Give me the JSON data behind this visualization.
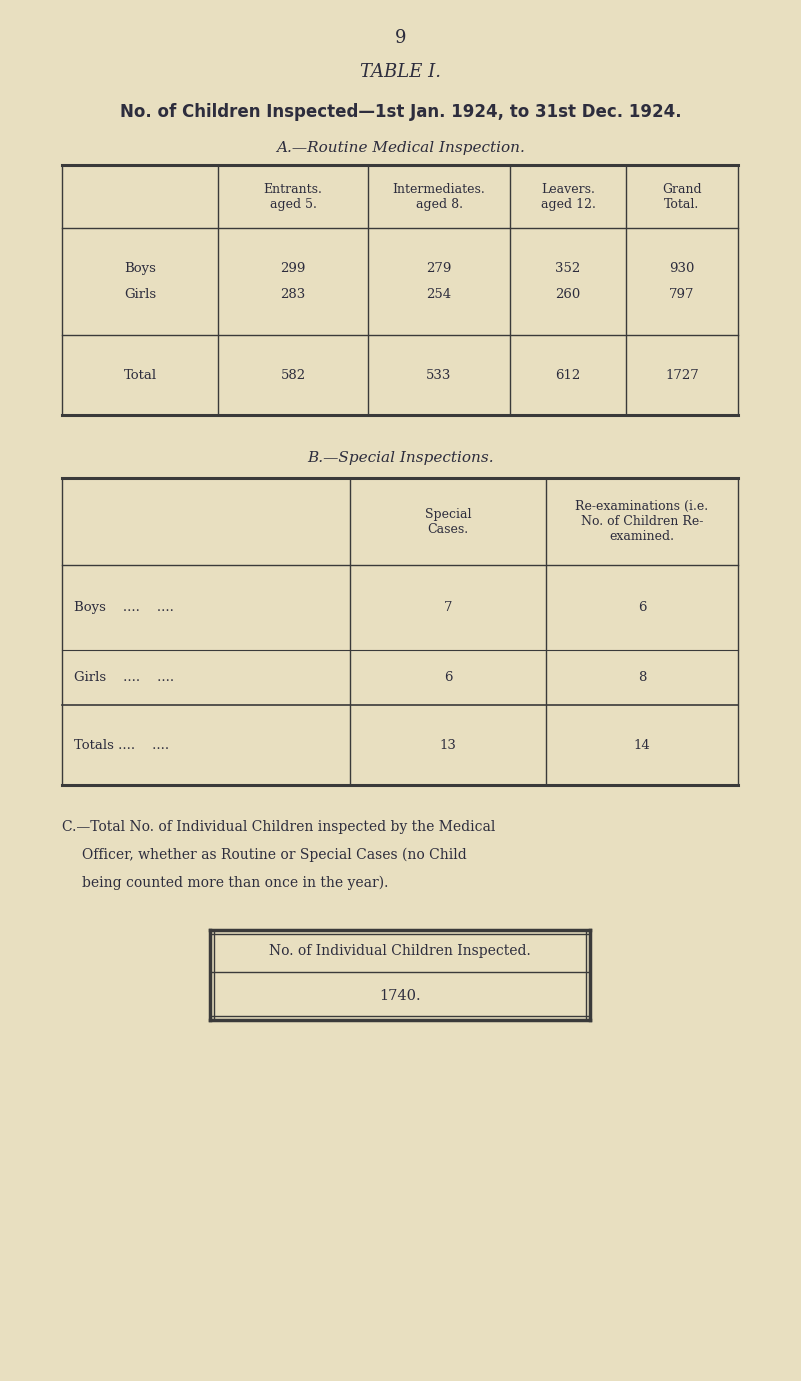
{
  "bg_color": "#e8dfc0",
  "page_number": "9",
  "table_title": "TABLE I.",
  "main_title": "No. of Children Inspected—1st Jan. 1924, to 31st Dec. 1924.",
  "section_a_title": "A.—Routine Medical Inspection.",
  "section_b_title": "B.—Special Inspections.",
  "section_c_text_1": "C.—Total No. of Individual Children inspected by the Medical",
  "section_c_text_2": "Officer, whether as Routine or Special Cases (no Child",
  "section_c_text_3": "being counted more than once in the year).",
  "table_a_col_headers": [
    "Entrants.\naged 5.",
    "Intermediates.\naged 8.",
    "Leavers.\naged 12.",
    "Grand\nTotal."
  ],
  "table_a_rows": [
    [
      "Boys\nGirls",
      "299\n283",
      "279\n254",
      "352\n260",
      "930\n797"
    ],
    [
      "Total",
      "582",
      "533",
      "612",
      "1727"
    ]
  ],
  "table_b_col_headers": [
    "Special\nCases.",
    "Re-examinations (i.e.\nNo. of Children Re-\nexamined."
  ],
  "table_b_rows": [
    [
      "Boys    ....    ....",
      "7",
      "6"
    ],
    [
      "Girls    ....    ....",
      "6",
      "8"
    ],
    [
      "Totals ....    ....",
      "13",
      "14"
    ]
  ],
  "box_c_header": "No. of Individual Children Inspected.",
  "box_c_value": "1740.",
  "text_color": "#2d2d3d",
  "line_color": "#3a3a3a"
}
